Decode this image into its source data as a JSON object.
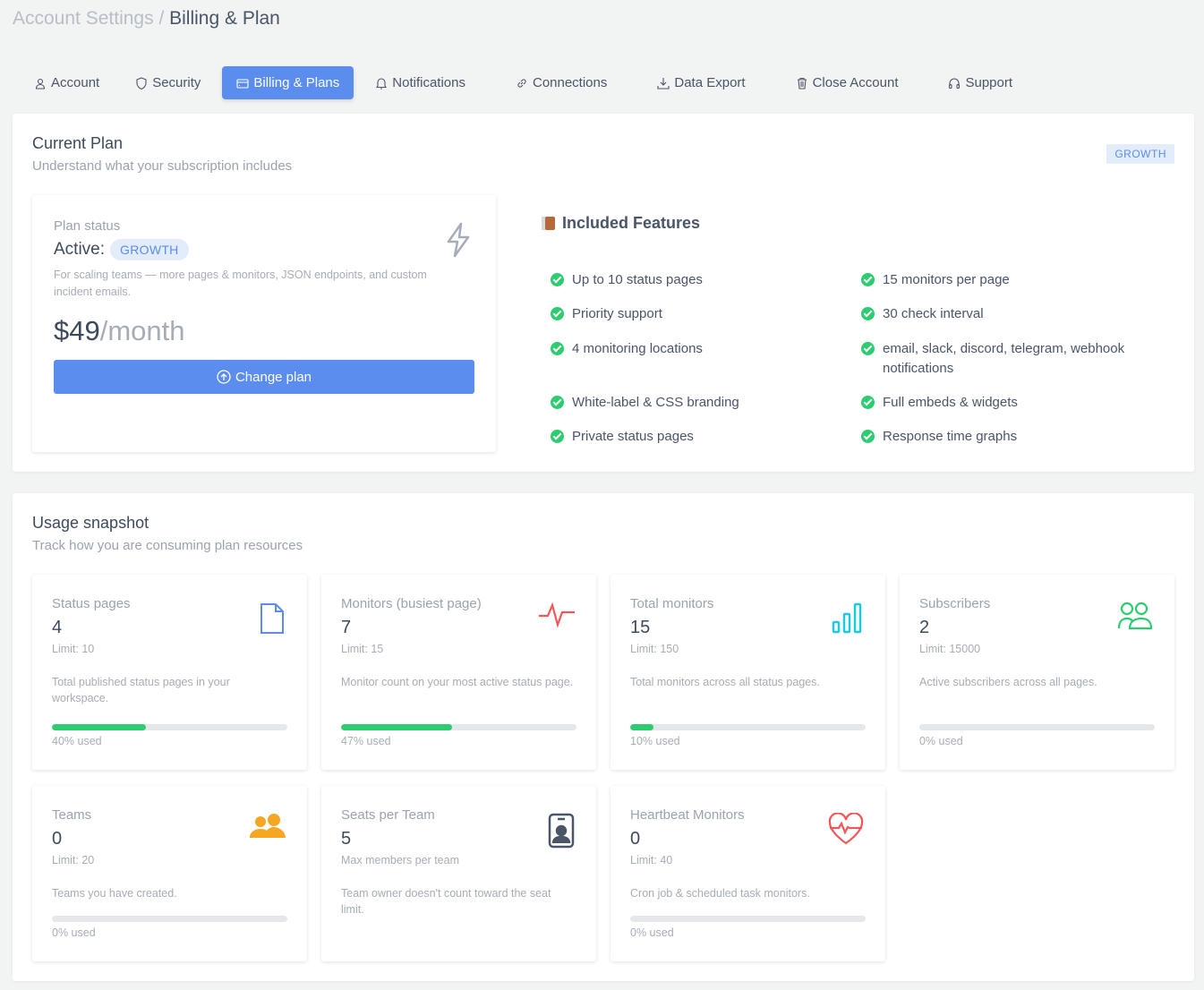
{
  "breadcrumb": {
    "parent": "Account Settings",
    "separator": "/",
    "current": "Billing & Plan"
  },
  "tabs": [
    {
      "label": "Account",
      "icon": "user-icon"
    },
    {
      "label": "Security",
      "icon": "shield-icon"
    },
    {
      "label": "Billing & Plans",
      "icon": "credit-card-icon",
      "active": true
    },
    {
      "label": "Notifications",
      "icon": "bell-icon"
    },
    {
      "label": "Connections",
      "icon": "link-icon"
    },
    {
      "label": "Data Export",
      "icon": "download-icon"
    },
    {
      "label": "Close Account",
      "icon": "trash-icon"
    },
    {
      "label": "Support",
      "icon": "headphones-icon"
    }
  ],
  "current_plan": {
    "title": "Current Plan",
    "subtitle": "Understand what your subscription includes",
    "badge": "GROWTH",
    "status_label": "Plan status",
    "active_label": "Active:",
    "plan_name": "GROWTH",
    "description": "For scaling teams — more pages & monitors, JSON endpoints, and custom incident emails.",
    "price": "$49",
    "period": "/month",
    "change_button": "Change plan",
    "features_title": "Included Features",
    "features": [
      "Up to 10 status pages",
      "15 monitors per page",
      "Priority support",
      "30 check interval",
      "4 monitoring locations",
      "email, slack, discord, telegram, webhook notifications",
      "White-label & CSS branding",
      "Full embeds & widgets",
      "Private status pages",
      "Response time graphs"
    ]
  },
  "usage": {
    "title": "Usage snapshot",
    "subtitle": "Track how you are consuming plan resources",
    "cards": [
      {
        "title": "Status pages",
        "value": "4",
        "limit": "Limit: 10",
        "desc": "Total published status pages in your workspace.",
        "percent": 40,
        "used": "40% used",
        "icon": "file-icon",
        "color": "#5b8def"
      },
      {
        "title": "Monitors (busiest page)",
        "value": "7",
        "limit": "Limit: 15",
        "desc": "Monitor count on your most active status page.",
        "percent": 47,
        "used": "47% used",
        "icon": "pulse-icon",
        "color": "#f25757"
      },
      {
        "title": "Total monitors",
        "value": "15",
        "limit": "Limit: 150",
        "desc": "Total monitors across all status pages.",
        "percent": 10,
        "used": "10% used",
        "icon": "bar-chart-icon",
        "color": "#1ec8e0"
      },
      {
        "title": "Subscribers",
        "value": "2",
        "limit": "Limit: 15000",
        "desc": "Active subscribers across all pages.",
        "percent": 0,
        "used": "0% used",
        "icon": "users-icon",
        "color": "#2ecc71"
      },
      {
        "title": "Teams",
        "value": "0",
        "limit": "Limit: 20",
        "desc": "Teams you have created.",
        "percent": 0,
        "used": "0% used",
        "icon": "team-icon",
        "color": "#f5a623"
      },
      {
        "title": "Seats per Team",
        "value": "5",
        "limit": "Max members per team",
        "desc": "Team owner doesn't count toward the seat limit.",
        "icon": "id-badge-icon",
        "color": "#4a5568"
      },
      {
        "title": "Heartbeat Monitors",
        "value": "0",
        "limit": "Limit: 40",
        "desc": "Cron job & scheduled task monitors.",
        "percent": 0,
        "used": "0% used",
        "icon": "heartbeat-icon",
        "color": "#f25757"
      }
    ]
  }
}
